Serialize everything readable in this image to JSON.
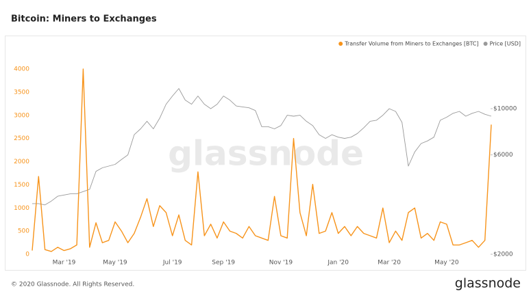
{
  "chart_data": {
    "type": "line",
    "title": "Bitcoin: Miners to Exchanges",
    "watermark": "glassnode",
    "footer": "© 2020 Glassnode. All Rights Reserved.",
    "logo": "glassnode",
    "legend": "top-right",
    "grid": false,
    "y2scale": "log",
    "categories": [
      null,
      null,
      null,
      null,
      null,
      "Mar '19",
      null,
      null,
      null,
      null,
      null,
      null,
      null,
      "May '19",
      null,
      null,
      null,
      null,
      null,
      null,
      null,
      null,
      "Jul '19",
      null,
      null,
      null,
      null,
      null,
      null,
      null,
      "Sep '19",
      null,
      null,
      null,
      null,
      null,
      null,
      null,
      null,
      "Nov '19",
      null,
      null,
      null,
      null,
      null,
      null,
      null,
      null,
      "Jan '20",
      null,
      null,
      null,
      null,
      null,
      null,
      null,
      "Mar '20",
      null,
      null,
      null,
      null,
      null,
      null,
      null,
      null,
      "May '20",
      null,
      null,
      null,
      null,
      null,
      null,
      null
    ],
    "ylim": [
      0,
      4000
    ],
    "yticks": [
      0,
      500,
      1000,
      1500,
      2000,
      2500,
      3000,
      3500,
      4000
    ],
    "y2lim": [
      2000,
      15500
    ],
    "y2ticks": [
      {
        "value": 2000,
        "label": "$2000"
      },
      {
        "value": 6000,
        "label": "$6000"
      },
      {
        "value": 10000,
        "label": "$10000"
      }
    ],
    "series": [
      {
        "name": "Transfer Volume from Miners to Exchanges [BTC]",
        "color": "#f7931a",
        "values": [
          80,
          1680,
          100,
          60,
          150,
          80,
          120,
          200,
          4000,
          150,
          680,
          250,
          300,
          700,
          500,
          250,
          450,
          800,
          1200,
          600,
          1050,
          900,
          400,
          850,
          300,
          200,
          1780,
          400,
          650,
          350,
          700,
          500,
          450,
          350,
          600,
          400,
          350,
          300,
          1250,
          400,
          350,
          2500,
          900,
          400,
          1510,
          450,
          500,
          900,
          450,
          600,
          400,
          600,
          450,
          400,
          350,
          1000,
          250,
          500,
          300,
          900,
          1000,
          350,
          450,
          300,
          700,
          650,
          200,
          200,
          250,
          300,
          150,
          300,
          2800
        ]
      },
      {
        "name": "Price [USD]",
        "color": "#999999",
        "axis": "y2",
        "values": [
          3500,
          3500,
          3450,
          3600,
          3800,
          3850,
          3900,
          3900,
          4000,
          4100,
          5000,
          5200,
          5300,
          5400,
          5700,
          6000,
          7500,
          8000,
          8700,
          8000,
          9000,
          10500,
          11500,
          12500,
          11000,
          10500,
          11500,
          10500,
          10000,
          10500,
          11500,
          11000,
          10300,
          10200,
          10100,
          9800,
          8200,
          8200,
          8000,
          8300,
          9300,
          9200,
          9300,
          8700,
          8300,
          7500,
          7200,
          7500,
          7300,
          7200,
          7300,
          7600,
          8100,
          8700,
          8800,
          9300,
          10000,
          9700,
          8600,
          5300,
          6200,
          6800,
          7000,
          7300,
          8800,
          9100,
          9500,
          9700,
          9200,
          9500,
          9700,
          9400,
          9200
        ]
      }
    ]
  }
}
